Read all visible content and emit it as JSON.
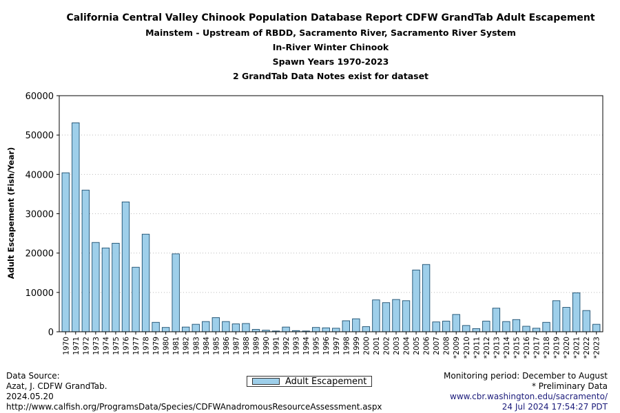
{
  "chart_data": {
    "type": "bar",
    "title": "California Central Valley Chinook Population Database Report CDFW GrandTab Adult Escapement",
    "subtitles": [
      "Mainstem - Upstream of RBDD, Sacramento River, Sacramento River System",
      "In-River Winter Chinook",
      "Spawn Years 1970-2023",
      "2 GrandTab Data Notes exist for dataset"
    ],
    "ylabel": "Adult Escapement (Fish/Year)",
    "xlabel": "",
    "ylim": [
      0,
      60000
    ],
    "yticks": [
      "0",
      "10000",
      "20000",
      "30000",
      "40000",
      "50000",
      "60000"
    ],
    "grid": "y-dotted",
    "bar_color": "#9ecfea",
    "categories": [
      "1970",
      "1971",
      "1972",
      "1973",
      "1974",
      "1975",
      "1976",
      "1977",
      "1978",
      "1979",
      "1980",
      "1981",
      "1982",
      "1983",
      "1984",
      "1985",
      "1986",
      "1987",
      "1988",
      "1989",
      "1990",
      "1991",
      "1992",
      "1993",
      "1994",
      "1995",
      "1996",
      "1997",
      "1998",
      "1999",
      "2000",
      "2001",
      "2002",
      "2003",
      "2004",
      "2005",
      "2006",
      "2007",
      "2008",
      "*2009",
      "*2010",
      "*2011",
      "*2012",
      "*2013",
      "*2014",
      "*2015",
      "*2016",
      "*2017",
      "*2018",
      "*2019",
      "*2020",
      "*2021",
      "*2022",
      "*2023"
    ],
    "values": [
      40400,
      53100,
      36000,
      22700,
      21300,
      22500,
      33000,
      16400,
      24800,
      2400,
      1100,
      19800,
      1200,
      1900,
      2600,
      3600,
      2600,
      2000,
      2100,
      600,
      400,
      200,
      1200,
      300,
      200,
      1100,
      1000,
      900,
      2800,
      3300,
      1300,
      8100,
      7400,
      8200,
      7900,
      15700,
      17100,
      2500,
      2700,
      4400,
      1600,
      800,
      2700,
      6000,
      2600,
      3100,
      1400,
      900,
      2400,
      7900,
      6200,
      9900,
      5400,
      1900
    ],
    "legend": "Adult Escapement",
    "legend_position": "bottom-center"
  },
  "footer": {
    "source_label": "Data Source:",
    "source_line1": "Azat, J. CDFW GrandTab.",
    "source_date": "2024.05.20",
    "source_url": "http://www.calfish.org/ProgramsData/Species/CDFWAnadromousResourceAssessment.aspx",
    "monitoring": "Monitoring period: December to August",
    "preliminary": "* Preliminary Data",
    "site_url": "www.cbr.washington.edu/sacramento/",
    "timestamp": "24 Jul 2024 17:54:27 PDT"
  }
}
